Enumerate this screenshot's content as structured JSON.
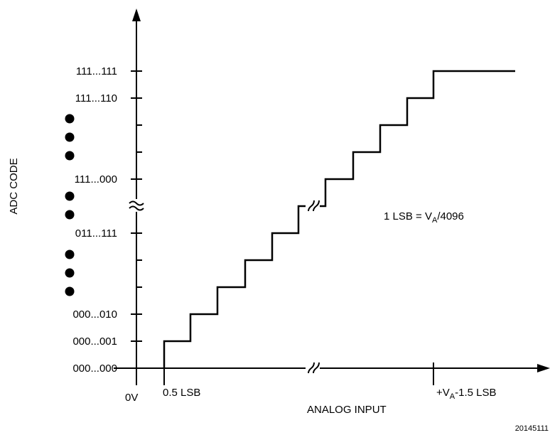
{
  "y_axis": {
    "label": "ADC CODE",
    "codes": [
      "111...111",
      "111...110",
      "111...000",
      "011...111",
      "000...010",
      "000...001",
      "000...000"
    ]
  },
  "x_axis": {
    "label": "ANALOG INPUT",
    "origin_label": "0V",
    "first_transition_label": "0.5 LSB",
    "last_transition_prefix": "+V",
    "last_transition_sub": "A",
    "last_transition_suffix": "-1.5 LSB"
  },
  "annotation": {
    "prefix": "1 LSB = V",
    "sub": "A",
    "suffix": "/4096"
  },
  "figure_id": "20145111"
}
